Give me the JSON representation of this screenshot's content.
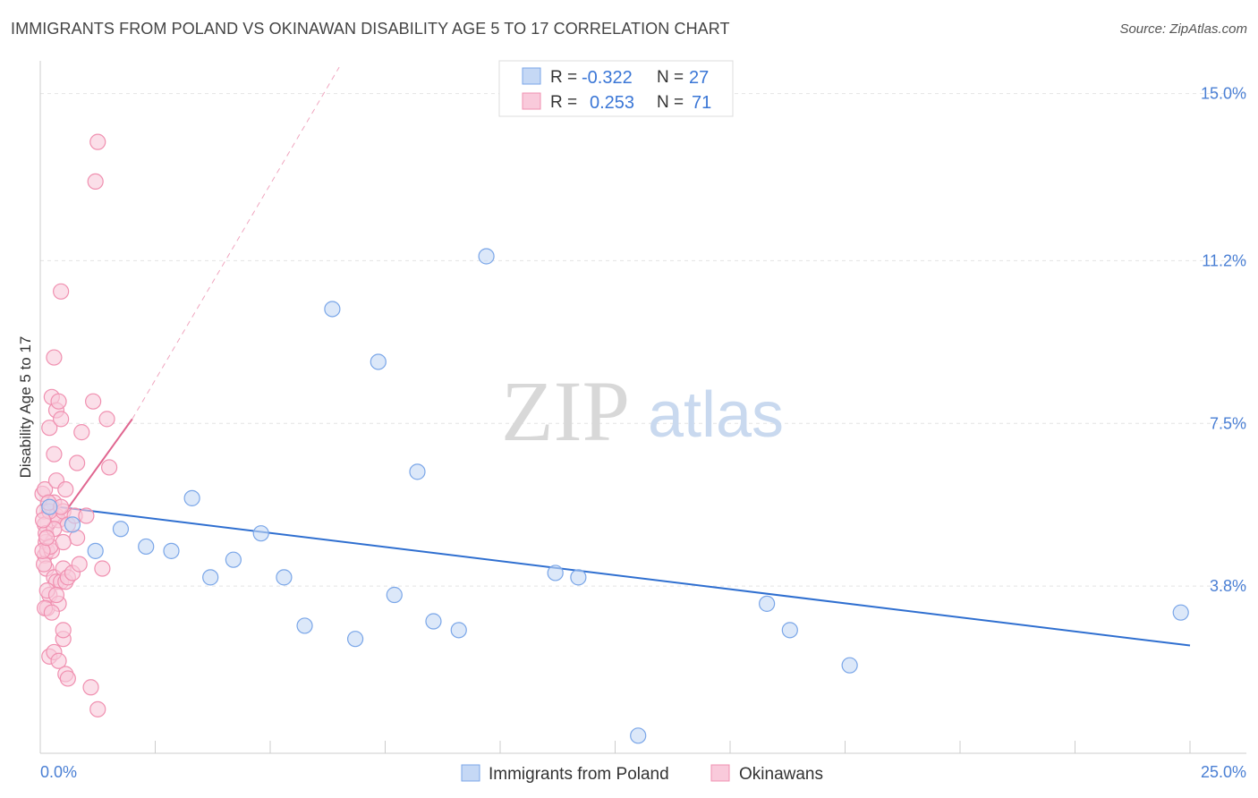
{
  "header": {
    "title": "IMMIGRANTS FROM POLAND VS OKINAWAN DISABILITY AGE 5 TO 17 CORRELATION CHART",
    "source": "Source: ZipAtlas.com"
  },
  "watermark": {
    "zip": "ZIP",
    "atlas": "atlas"
  },
  "chart_data": {
    "type": "scatter",
    "title": "IMMIGRANTS FROM POLAND VS OKINAWAN DISABILITY AGE 5 TO 17 CORRELATION CHART",
    "xlabel": "",
    "ylabel": "Disability Age 5 to 17",
    "xlim": [
      0,
      25
    ],
    "ylim": [
      0,
      15.5
    ],
    "x_tick_labels": [
      "0.0%",
      "25.0%"
    ],
    "y_ticks": [
      3.8,
      7.5,
      11.2,
      15.0
    ],
    "y_tick_labels": [
      "3.8%",
      "7.5%",
      "11.2%",
      "15.0%"
    ],
    "grid": true,
    "legend": {
      "placement": "top-center",
      "entries": [
        {
          "r_label": "R =",
          "r_value": "-0.322",
          "n_label": "N =",
          "n_value": "27"
        },
        {
          "r_label": "R =",
          "r_value": "0.253",
          "n_label": "N =",
          "n_value": "71"
        }
      ]
    },
    "series": [
      {
        "name": "Immigrants from Poland",
        "color": "#7aa6e8",
        "fill": "#c5d8f5",
        "points": [
          [
            0.2,
            5.6
          ],
          [
            0.7,
            5.2
          ],
          [
            1.2,
            4.6
          ],
          [
            1.75,
            5.1
          ],
          [
            2.3,
            4.7
          ],
          [
            2.85,
            4.6
          ],
          [
            3.3,
            5.8
          ],
          [
            3.7,
            4.0
          ],
          [
            4.2,
            4.4
          ],
          [
            4.8,
            5.0
          ],
          [
            5.3,
            4.0
          ],
          [
            5.75,
            2.9
          ],
          [
            6.35,
            10.1
          ],
          [
            6.85,
            2.6
          ],
          [
            7.35,
            8.9
          ],
          [
            7.7,
            3.6
          ],
          [
            8.2,
            6.4
          ],
          [
            8.55,
            3.0
          ],
          [
            9.1,
            2.8
          ],
          [
            9.7,
            11.3
          ],
          [
            11.2,
            4.1
          ],
          [
            11.7,
            4.0
          ],
          [
            13.0,
            0.4
          ],
          [
            15.8,
            3.4
          ],
          [
            16.3,
            2.8
          ],
          [
            17.6,
            2.0
          ],
          [
            24.8,
            3.2
          ]
        ],
        "trend": {
          "x0": 0.0,
          "y0": 5.65,
          "x1": 25.0,
          "y1": 2.45
        }
      },
      {
        "name": "Okinawans",
        "color": "#f090b0",
        "fill": "#f9cadb",
        "points": [
          [
            0.05,
            5.9
          ],
          [
            0.08,
            5.5
          ],
          [
            0.1,
            5.2
          ],
          [
            0.12,
            4.8
          ],
          [
            0.1,
            4.5
          ],
          [
            0.13,
            4.2
          ],
          [
            0.15,
            3.3
          ],
          [
            0.2,
            3.6
          ],
          [
            0.15,
            4.6
          ],
          [
            0.25,
            5.6
          ],
          [
            0.3,
            5.7
          ],
          [
            0.35,
            5.4
          ],
          [
            0.1,
            6.0
          ],
          [
            0.2,
            7.4
          ],
          [
            0.25,
            8.1
          ],
          [
            0.3,
            9.0
          ],
          [
            0.35,
            7.8
          ],
          [
            0.4,
            8.0
          ],
          [
            0.45,
            7.6
          ],
          [
            0.3,
            6.8
          ],
          [
            0.35,
            6.2
          ],
          [
            0.4,
            5.3
          ],
          [
            0.5,
            5.5
          ],
          [
            0.55,
            6.0
          ],
          [
            0.6,
            5.2
          ],
          [
            0.25,
            4.6
          ],
          [
            0.3,
            4.0
          ],
          [
            0.35,
            3.9
          ],
          [
            0.4,
            3.4
          ],
          [
            0.45,
            3.9
          ],
          [
            0.5,
            4.2
          ],
          [
            0.55,
            3.9
          ],
          [
            0.6,
            4.0
          ],
          [
            0.7,
            4.1
          ],
          [
            0.75,
            5.4
          ],
          [
            0.8,
            6.6
          ],
          [
            0.8,
            4.9
          ],
          [
            0.85,
            4.3
          ],
          [
            0.9,
            7.3
          ],
          [
            1.15,
            8.0
          ],
          [
            1.0,
            5.4
          ],
          [
            1.5,
            6.5
          ],
          [
            1.45,
            7.6
          ],
          [
            1.35,
            4.2
          ],
          [
            0.2,
            2.2
          ],
          [
            0.3,
            2.3
          ],
          [
            0.4,
            2.1
          ],
          [
            0.5,
            2.6
          ],
          [
            0.5,
            2.8
          ],
          [
            0.55,
            1.8
          ],
          [
            0.6,
            1.7
          ],
          [
            1.1,
            1.5
          ],
          [
            1.25,
            1.0
          ],
          [
            1.2,
            13.0
          ],
          [
            1.25,
            13.9
          ],
          [
            0.45,
            10.5
          ],
          [
            0.2,
            5.5
          ],
          [
            0.15,
            3.7
          ],
          [
            0.1,
            3.3
          ],
          [
            0.25,
            3.2
          ],
          [
            0.12,
            5.0
          ],
          [
            0.18,
            5.7
          ],
          [
            0.22,
            4.7
          ],
          [
            0.3,
            5.1
          ],
          [
            0.45,
            5.6
          ],
          [
            0.08,
            4.3
          ],
          [
            0.05,
            4.6
          ],
          [
            0.06,
            5.3
          ],
          [
            0.14,
            4.9
          ],
          [
            0.35,
            3.6
          ],
          [
            0.5,
            4.8
          ]
        ],
        "trend": {
          "x0": 0.0,
          "y0": 4.7,
          "x1": 2.0,
          "y1": 7.6
        },
        "trend_extension": {
          "x0": 2.0,
          "y0": 7.6,
          "x1": 6.5,
          "y1": 15.6
        }
      }
    ]
  },
  "bottom_legend": {
    "items": [
      "Immigrants from Poland",
      "Okinawans"
    ]
  }
}
